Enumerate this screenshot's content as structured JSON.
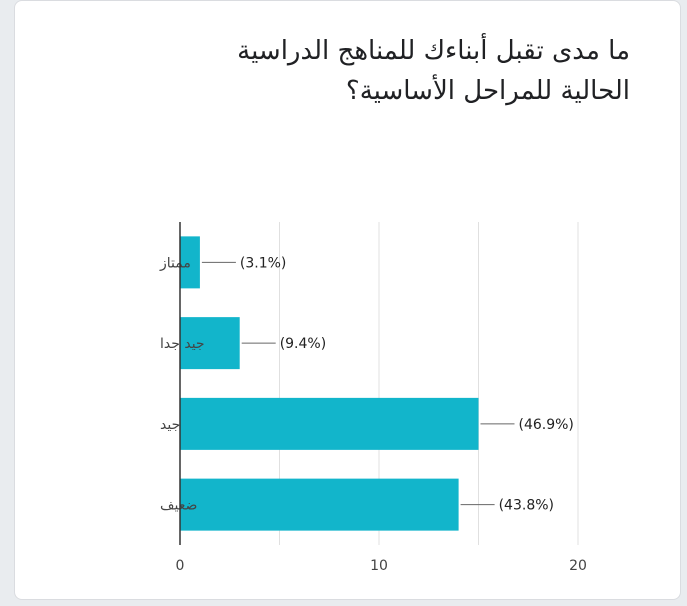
{
  "question": "ما مدى تقبل أبناءك للمناهج الدراسية الحالية للمراحل الأساسية؟",
  "chart_data": {
    "type": "bar",
    "orientation": "horizontal",
    "categories": [
      "ممتاز",
      "جيد جدا",
      "جيد",
      "ضعيف"
    ],
    "values": [
      1,
      3,
      15,
      14
    ],
    "data_labels": [
      "(3.1%)",
      "(9.4%)",
      "(46.9%)",
      "(43.8%)"
    ],
    "xlim": [
      0,
      20
    ],
    "xticks": [
      0,
      10,
      20
    ],
    "grid": true,
    "color": "#12b5cb"
  }
}
